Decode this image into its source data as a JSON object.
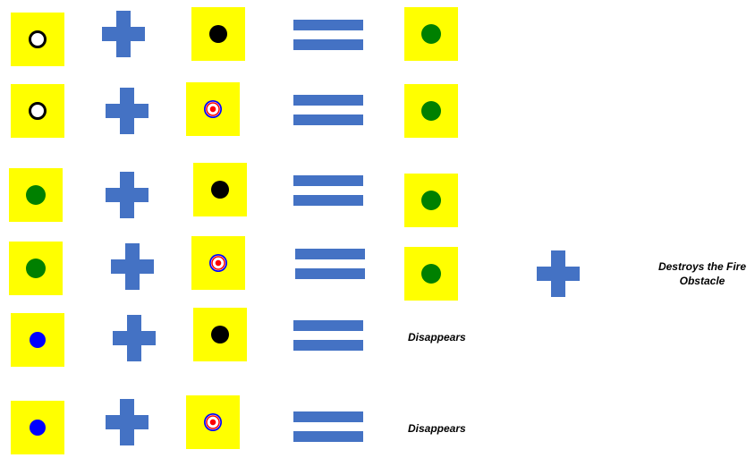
{
  "tile_color": "#ffff00",
  "operator_color": "#4472c4",
  "rules": [
    {
      "first": "white-ring",
      "operator": "plus",
      "second": "black-dot",
      "result": "green-dot"
    },
    {
      "first": "white-ring",
      "operator": "plus",
      "second": "target",
      "result": "green-dot"
    },
    {
      "first": "green-dot",
      "operator": "plus",
      "second": "black-dot",
      "result": "green-dot"
    },
    {
      "first": "green-dot",
      "operator": "plus",
      "second": "target",
      "result": "green-dot",
      "extra": "plus",
      "note": "Destroys the Fire Obstacle"
    },
    {
      "first": "blue-dot",
      "operator": "plus",
      "second": "black-dot",
      "result_text": "Disappears"
    },
    {
      "first": "blue-dot",
      "operator": "plus",
      "second": "target",
      "result_text": "Disappears"
    }
  ]
}
